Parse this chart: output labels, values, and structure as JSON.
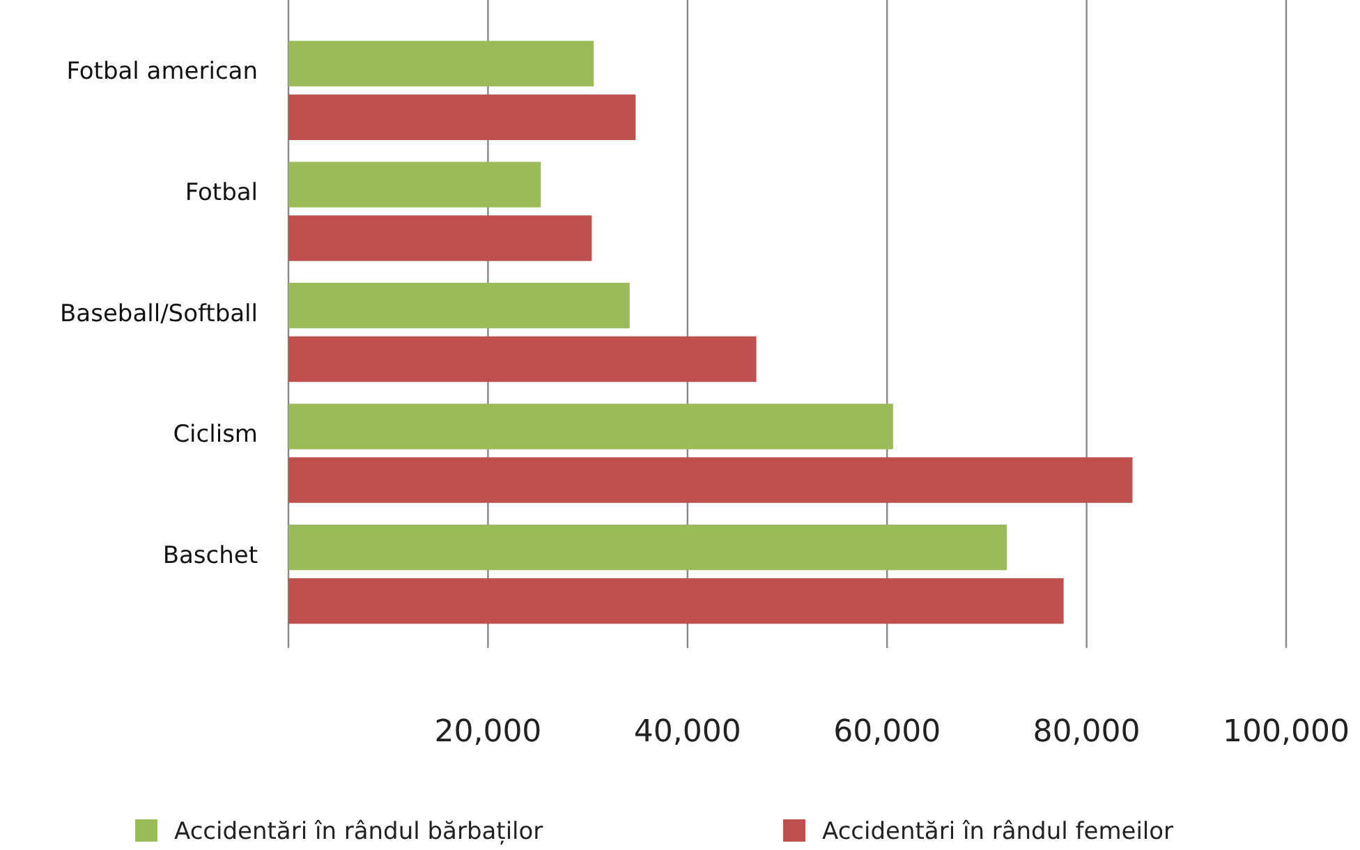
{
  "chart_data": {
    "type": "bar",
    "orientation": "horizontal",
    "categories": [
      "Fotbal american",
      "Fotbal",
      "Baseball/Softball",
      "Ciclism",
      "Baschet"
    ],
    "series": [
      {
        "name": "Accidentări în rândul bărbaților",
        "color": "#9bbb59",
        "values": [
          30600,
          25300,
          34200,
          60600,
          72000
        ]
      },
      {
        "name": "Accidentări în rândul femeilor",
        "color": "#c0504d",
        "values": [
          34800,
          30400,
          46900,
          84600,
          77700
        ]
      }
    ],
    "xlim": [
      0,
      100000
    ],
    "xticks": [
      {
        "value": 20000,
        "label": "20,000"
      },
      {
        "value": 40000,
        "label": "40,000"
      },
      {
        "value": 60000,
        "label": "60,000"
      },
      {
        "value": 80000,
        "label": "80,000"
      },
      {
        "value": 100000,
        "label": "100,000"
      }
    ],
    "grid": "x",
    "legend": "bottom"
  }
}
